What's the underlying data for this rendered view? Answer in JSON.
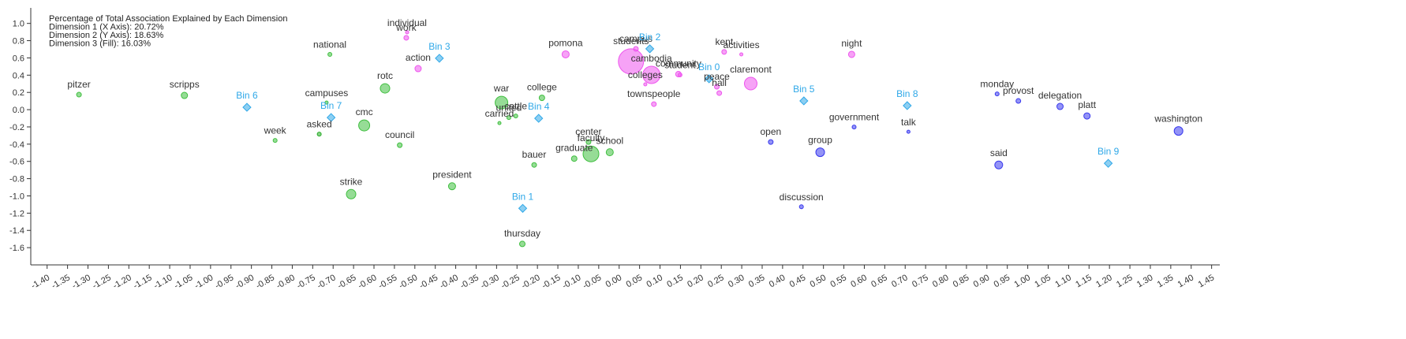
{
  "chart_data": {
    "type": "bubble",
    "annotations": [
      "Percentage of Total Association Explained by Each Dimension",
      "Dimension 1 (X Axis): 20.72%",
      "Dimension 2 (Y Axis): 18.63%",
      "Dimension 3 (Fill): 16.03%"
    ],
    "labels": [
      "pitzer",
      "scripps",
      "Bin 6",
      "week",
      "national",
      "campuses",
      "Bin 7",
      "asked",
      "cmc",
      "rotc",
      "council",
      "individual",
      "work",
      "action",
      "Bin 3",
      "strike",
      "president",
      "war",
      "united",
      "cattle",
      "carried",
      "college",
      "Bin 4",
      "bauer",
      "Bin 1",
      "thursday",
      "pomona",
      "center",
      "faculty",
      "school",
      "graduate",
      "students",
      "campus",
      "Bin 2",
      "colleges",
      "cambodia",
      "community",
      "student",
      "townspeople",
      "Bin 0",
      "peace",
      "hall",
      "kent",
      "activities",
      "claremont",
      "night",
      "Bin 5",
      "open",
      "group",
      "government",
      "discussion",
      "Bin 8",
      "talk",
      "monday",
      "provost",
      "delegation",
      "platt",
      "washington",
      "said",
      "Bin 9"
    ],
    "x": [
      -1.322,
      -1.064,
      -0.911,
      -0.842,
      -0.708,
      -0.716,
      -0.705,
      -0.734,
      -0.624,
      -0.573,
      -0.537,
      -0.519,
      -0.521,
      -0.492,
      -0.44,
      -0.656,
      -0.409,
      -0.288,
      -0.27,
      -0.253,
      -0.293,
      -0.189,
      -0.197,
      -0.208,
      -0.236,
      -0.237,
      -0.131,
      -0.075,
      -0.069,
      -0.023,
      -0.11,
      0.029,
      0.041,
      0.075,
      0.064,
      0.079,
      0.145,
      0.149,
      0.085,
      0.22,
      0.239,
      0.245,
      0.257,
      0.299,
      0.322,
      0.569,
      0.452,
      0.371,
      0.492,
      0.575,
      0.446,
      0.705,
      0.708,
      0.925,
      0.977,
      1.079,
      1.145,
      1.369,
      0.929,
      1.197
    ],
    "y": [
      0.174,
      0.165,
      0.027,
      -0.357,
      0.641,
      0.082,
      -0.092,
      -0.284,
      -0.183,
      0.247,
      -0.412,
      0.897,
      0.833,
      0.476,
      0.595,
      -0.98,
      -0.888,
      0.082,
      -0.092,
      -0.073,
      -0.156,
      0.137,
      -0.101,
      -0.641,
      -1.145,
      -1.557,
      0.641,
      -0.375,
      -0.513,
      -0.494,
      -0.568,
      0.559,
      0.705,
      0.705,
      0.293,
      0.403,
      0.412,
      0.403,
      0.064,
      0.357,
      0.266,
      0.192,
      0.669,
      0.641,
      0.302,
      0.641,
      0.101,
      -0.375,
      -0.494,
      -0.201,
      -1.126,
      0.046,
      -0.256,
      0.183,
      0.101,
      0.037,
      -0.073,
      -0.247,
      -0.641,
      -0.623
    ],
    "sizes": [
      3,
      4,
      5,
      2.5,
      2.5,
      2,
      5,
      2.5,
      7,
      6,
      3,
      2,
      3,
      4,
      5,
      6,
      4.5,
      8,
      2.5,
      2.5,
      2,
      3.5,
      5,
      3,
      5,
      3.5,
      4.5,
      3,
      10,
      4.5,
      3.5,
      16,
      3,
      5,
      2,
      11,
      3.5,
      2.5,
      3,
      5,
      3,
      3,
      3,
      2,
      8,
      4,
      5,
      3,
      5.5,
      2.5,
      2.5,
      5,
      2,
      2.5,
      3,
      4,
      4,
      5.5,
      5,
      5
    ],
    "markers": [
      "circle",
      "circle",
      "diamond",
      "circle",
      "circle",
      "circle",
      "diamond",
      "circle",
      "circle",
      "circle",
      "circle",
      "circle",
      "circle",
      "circle",
      "diamond",
      "circle",
      "circle",
      "circle",
      "circle",
      "circle",
      "circle",
      "circle",
      "diamond",
      "circle",
      "diamond",
      "circle",
      "circle",
      "circle",
      "circle",
      "circle",
      "circle",
      "circle",
      "circle",
      "diamond",
      "circle",
      "circle",
      "circle",
      "circle",
      "circle",
      "diamond",
      "circle",
      "circle",
      "circle",
      "circle",
      "circle",
      "circle",
      "diamond",
      "circle",
      "circle",
      "circle",
      "circle",
      "diamond",
      "circle",
      "circle",
      "circle",
      "circle",
      "circle",
      "circle",
      "circle",
      "diamond"
    ],
    "colors": [
      "#3fbf3f",
      "#3fbf3f",
      "#2fa8e8",
      "#3fbf3f",
      "#3fbf3f",
      "#3fbf3f",
      "#2fa8e8",
      "#22aa22",
      "#3fbf3f",
      "#3fbf3f",
      "#3fbf3f",
      "#ee55ee",
      "#ee55ee",
      "#ee55ee",
      "#2fa8e8",
      "#3fbf3f",
      "#3fbf3f",
      "#3fbf3f",
      "#3fbf3f",
      "#3fbf3f",
      "#3fbf3f",
      "#3fbf3f",
      "#2fa8e8",
      "#3fbf3f",
      "#2fa8e8",
      "#3fbf3f",
      "#ee55ee",
      "#3fbf3f",
      "#3fbf3f",
      "#3fbf3f",
      "#3fbf3f",
      "#ee55ee",
      "#ee55ee",
      "#2fa8e8",
      "#ee55ee",
      "#ee55ee",
      "#ee55ee",
      "#ee55ee",
      "#ee55ee",
      "#2fa8e8",
      "#ee55ee",
      "#ee55ee",
      "#ee55ee",
      "#ee55ee",
      "#ee55ee",
      "#ee55ee",
      "#2fa8e8",
      "#3a3aee",
      "#3a3aee",
      "#3a3aee",
      "#3a3aee",
      "#2fa8e8",
      "#3a3aee",
      "#3a3aee",
      "#3a3aee",
      "#3a3aee",
      "#3a3aee",
      "#3a3aee",
      "#3a3aee",
      "#2fa8e8"
    ],
    "xlim": [
      -1.44,
      1.47
    ],
    "ylim": [
      -1.8,
      1.18
    ],
    "xticks": [
      {
        "value": -1.4,
        "label": "-1.40"
      },
      -1.35,
      {
        "value": -1.3,
        "label": "-1.30"
      },
      -1.25,
      {
        "value": -1.2,
        "label": "-1.20"
      },
      -1.15,
      {
        "value": -1.1,
        "label": "-1.10"
      },
      -1.05,
      {
        "value": -1,
        "label": "-1.00"
      },
      -0.95,
      {
        "value": -0.9,
        "label": "-0.90"
      },
      -0.85,
      {
        "value": -0.8,
        "label": "-0.80"
      },
      -0.75,
      {
        "value": -0.7,
        "label": "-0.70"
      },
      -0.65,
      {
        "value": -0.6,
        "label": "-0.60"
      },
      -0.55,
      {
        "value": -0.5,
        "label": "-0.50"
      },
      -0.45,
      {
        "value": -0.4,
        "label": "-0.40"
      },
      -0.35,
      {
        "value": -0.3,
        "label": "-0.30"
      },
      -0.25,
      {
        "value": -0.2,
        "label": "-0.20"
      },
      -0.15,
      {
        "value": -0.1,
        "label": "-0.10"
      },
      -0.05,
      {
        "value": 0,
        "label": "0.00"
      },
      0.05,
      {
        "value": 0.1,
        "label": "0.10"
      },
      0.15,
      {
        "value": 0.2,
        "label": "0.20"
      },
      0.25,
      {
        "value": 0.3,
        "label": "0.30"
      },
      0.35,
      {
        "value": 0.4,
        "label": "0.40"
      },
      0.45,
      {
        "value": 0.5,
        "label": "0.50"
      },
      0.55,
      {
        "value": 0.6,
        "label": "0.60"
      },
      0.65,
      {
        "value": 0.7,
        "label": "0.70"
      },
      0.75,
      {
        "value": 0.8,
        "label": "0.80"
      },
      0.85,
      {
        "value": 0.9,
        "label": "0.90"
      },
      0.95,
      {
        "value": 1,
        "label": "1.00"
      },
      1.05,
      {
        "value": 1.1,
        "label": "1.10"
      },
      1.15,
      {
        "value": 1.2,
        "label": "1.20"
      },
      1.25,
      {
        "value": 1.3,
        "label": "1.30"
      },
      1.35,
      {
        "value": 1.4,
        "label": "1.40"
      },
      1.45
    ],
    "yticks": [
      {
        "value": 1,
        "label": "1.0"
      },
      0.8,
      0.6,
      0.4,
      0.2,
      {
        "value": 0,
        "label": "0.0"
      },
      -0.2,
      -0.4,
      -0.6,
      -0.8,
      {
        "value": -1,
        "label": "-1.0"
      },
      -1.2,
      -1.4,
      -1.6
    ]
  }
}
